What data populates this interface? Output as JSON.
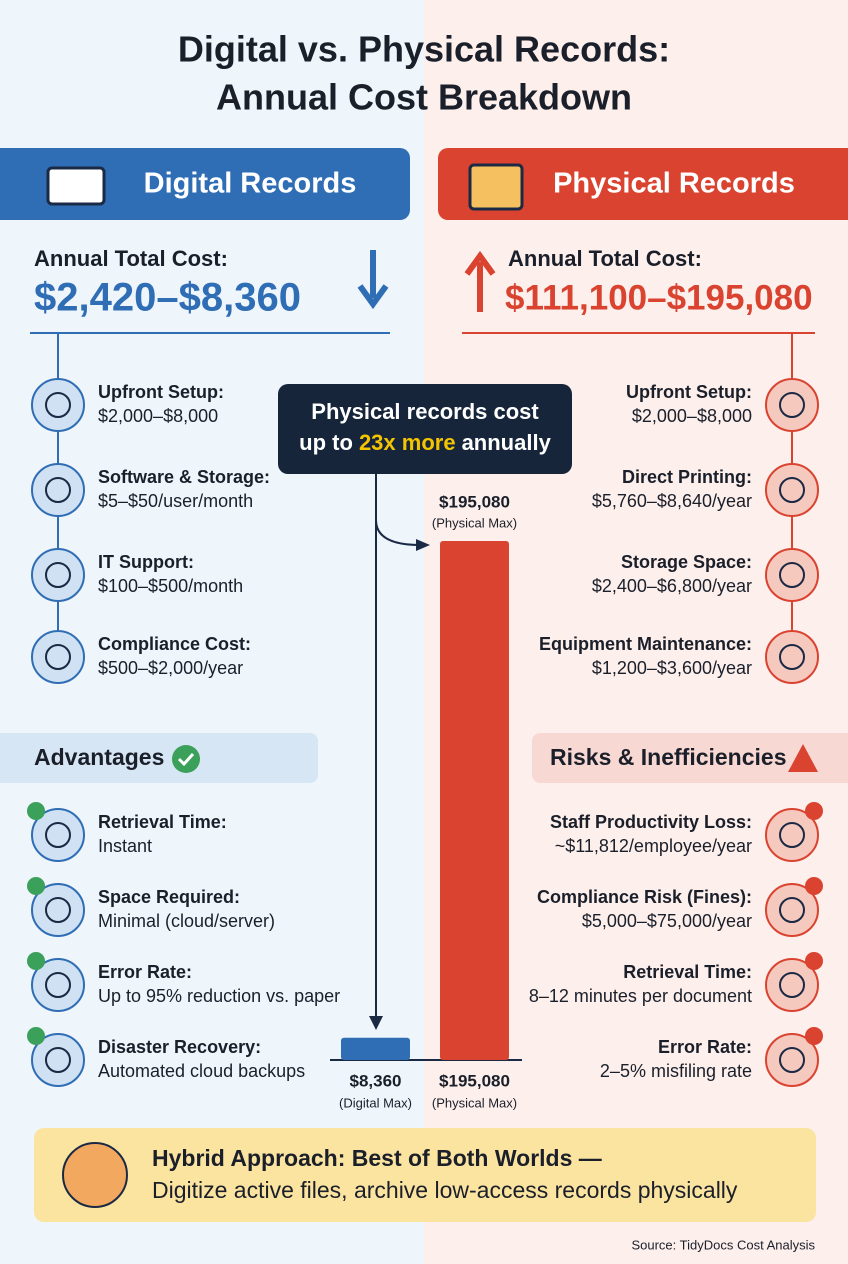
{
  "title": [
    "Digital vs. Physical Records:",
    "Annual Cost Breakdown"
  ],
  "digital": {
    "header": "Digital Records",
    "total_label": "Annual Total Cost:",
    "total": "$2,420–$8,360",
    "costs": [
      {
        "label": "Upfront Setup:",
        "value": "$2,000–$8,000"
      },
      {
        "label": "Software & Storage:",
        "value": "$5–$50/user/month"
      },
      {
        "label": "IT Support:",
        "value": "$100–$500/month"
      },
      {
        "label": "Compliance Cost:",
        "value": "$500–$2,000/year"
      }
    ],
    "advantages_title": "Advantages",
    "advantages": [
      {
        "label": "Retrieval Time:",
        "value": "Instant"
      },
      {
        "label": "Space Required:",
        "value": "Minimal (cloud/server)"
      },
      {
        "label": "Error Rate:",
        "value": "Up to 95% reduction vs. paper"
      },
      {
        "label": "Disaster Recovery:",
        "value": "Automated cloud backups"
      }
    ]
  },
  "physical": {
    "header": "Physical Records",
    "total_label": "Annual Total Cost:",
    "total": "$111,100–$195,080",
    "costs": [
      {
        "label": "Upfront Setup:",
        "value": "$2,000–$8,000"
      },
      {
        "label": "Direct Printing:",
        "value": "$5,760–$8,640/year"
      },
      {
        "label": "Storage Space:",
        "value": "$2,400–$6,800/year"
      },
      {
        "label": "Equipment Maintenance:",
        "value": "$1,200–$3,600/year"
      }
    ],
    "risks_title": "Risks & Inefficiencies",
    "risks": [
      {
        "label": "Staff Productivity Loss:",
        "value": "~$11,812/employee/year"
      },
      {
        "label": "Compliance Risk (Fines):",
        "value": "$5,000–$75,000/year"
      },
      {
        "label": "Retrieval Time:",
        "value": "8–12 minutes per document"
      },
      {
        "label": "Error Rate:",
        "value": "2–5% misfiling rate"
      }
    ]
  },
  "callout": {
    "line1": "Physical records cost",
    "line2_before": "up to",
    "highlight": "23x more",
    "line2_after": "annually"
  },
  "chart_data": {
    "type": "bar",
    "categories": [
      "(Digital Max)",
      "(Physical Max)"
    ],
    "values": [
      8360,
      195080
    ],
    "value_labels": [
      "$8,360",
      "$195,080"
    ],
    "colors": [
      "#2f6db5",
      "#d9432f"
    ],
    "ylim": [
      0,
      195080
    ]
  },
  "hybrid": {
    "title": "Hybrid Approach: Best of Both Worlds —",
    "text": "Digitize active files, archive low-access records physically"
  },
  "source": "Source: TidyDocs Cost Analysis"
}
